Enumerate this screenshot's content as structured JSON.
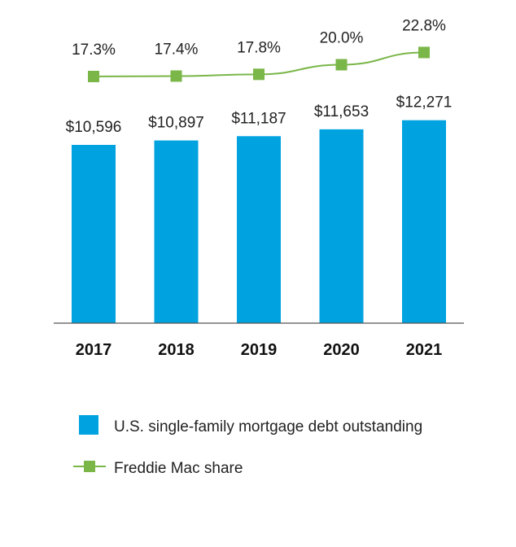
{
  "chart_data": {
    "type": "bar",
    "categories": [
      "2017",
      "2018",
      "2019",
      "2020",
      "2021"
    ],
    "series": [
      {
        "name": "U.S. single-family mortgage debt outstanding",
        "type": "bar",
        "values": [
          10596,
          10897,
          11187,
          11653,
          12271
        ],
        "labels": [
          "$10,596",
          "$10,897",
          "$11,187",
          "$11,653",
          "$12,271"
        ],
        "color": "#00a3e0"
      },
      {
        "name": "Freddie Mac share",
        "type": "line",
        "values": [
          17.3,
          17.4,
          17.8,
          20.0,
          22.8
        ],
        "labels": [
          "17.3%",
          "17.4%",
          "17.8%",
          "20.0%",
          "22.8%"
        ],
        "color": "#7ab648"
      }
    ],
    "title": "",
    "xlabel": "",
    "ylabel": "",
    "grid": false,
    "legend_position": "bottom"
  },
  "legend": {
    "items": [
      {
        "label": "U.S. single-family mortgage debt outstanding",
        "marker": "square",
        "color": "#00a3e0"
      },
      {
        "label": "Freddie Mac share",
        "marker": "line-square",
        "color": "#7ab648"
      }
    ]
  }
}
